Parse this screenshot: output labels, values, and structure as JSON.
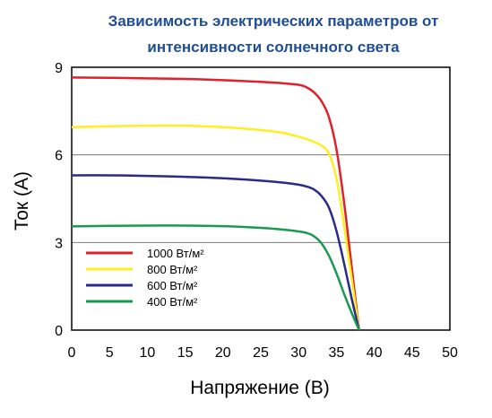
{
  "chart_data": {
    "type": "line",
    "title_lines": [
      "Зависимость электрических параметров от",
      "интенсивности солнечного света"
    ],
    "title_color": "#1f4e96",
    "xlabel": "Напряжение (В)",
    "ylabel": "Ток (А)",
    "xlim": [
      0,
      50
    ],
    "ylim": [
      0,
      9
    ],
    "x_ticks": [
      0,
      5,
      10,
      15,
      20,
      25,
      30,
      35,
      40,
      45,
      50
    ],
    "y_ticks": [
      0,
      3,
      6,
      9
    ],
    "grid": "horizontal",
    "legend_position": "lower-left",
    "series": [
      {
        "name": "1000 Вт/м²",
        "color": "#e0202a",
        "points": [
          [
            0,
            8.65
          ],
          [
            5,
            8.64
          ],
          [
            10,
            8.62
          ],
          [
            15,
            8.6
          ],
          [
            20,
            8.56
          ],
          [
            25,
            8.5
          ],
          [
            28,
            8.45
          ],
          [
            30,
            8.4
          ],
          [
            31,
            8.32
          ],
          [
            32,
            8.15
          ],
          [
            33,
            7.85
          ],
          [
            34,
            7.3
          ],
          [
            35,
            6.2
          ],
          [
            36,
            4.4
          ],
          [
            37,
            2.2
          ],
          [
            38,
            0
          ]
        ]
      },
      {
        "name": "800 Вт/м²",
        "color": "#ffee22",
        "points": [
          [
            0,
            6.95
          ],
          [
            5,
            6.98
          ],
          [
            10,
            7.0
          ],
          [
            15,
            7.0
          ],
          [
            20,
            6.95
          ],
          [
            25,
            6.85
          ],
          [
            28,
            6.75
          ],
          [
            30,
            6.62
          ],
          [
            31,
            6.55
          ],
          [
            32,
            6.45
          ],
          [
            33,
            6.32
          ],
          [
            34,
            6.05
          ],
          [
            35,
            5.2
          ],
          [
            36,
            3.6
          ],
          [
            37,
            1.8
          ],
          [
            38,
            0
          ]
        ]
      },
      {
        "name": "600 Вт/м²",
        "color": "#2a2a8a",
        "points": [
          [
            0,
            5.3
          ],
          [
            5,
            5.3
          ],
          [
            10,
            5.28
          ],
          [
            15,
            5.25
          ],
          [
            20,
            5.2
          ],
          [
            25,
            5.12
          ],
          [
            28,
            5.05
          ],
          [
            30,
            4.98
          ],
          [
            31,
            4.92
          ],
          [
            32,
            4.82
          ],
          [
            33,
            4.6
          ],
          [
            34,
            4.2
          ],
          [
            35,
            3.4
          ],
          [
            36,
            2.3
          ],
          [
            37,
            1.1
          ],
          [
            38,
            0
          ]
        ]
      },
      {
        "name": "400 Вт/м²",
        "color": "#1a9a50",
        "points": [
          [
            0,
            3.55
          ],
          [
            5,
            3.57
          ],
          [
            10,
            3.58
          ],
          [
            15,
            3.58
          ],
          [
            20,
            3.56
          ],
          [
            25,
            3.5
          ],
          [
            28,
            3.44
          ],
          [
            30,
            3.38
          ],
          [
            31,
            3.33
          ],
          [
            32,
            3.22
          ],
          [
            33,
            2.98
          ],
          [
            34,
            2.55
          ],
          [
            35,
            1.95
          ],
          [
            36,
            1.25
          ],
          [
            37,
            0.6
          ],
          [
            38,
            0
          ]
        ]
      }
    ]
  }
}
